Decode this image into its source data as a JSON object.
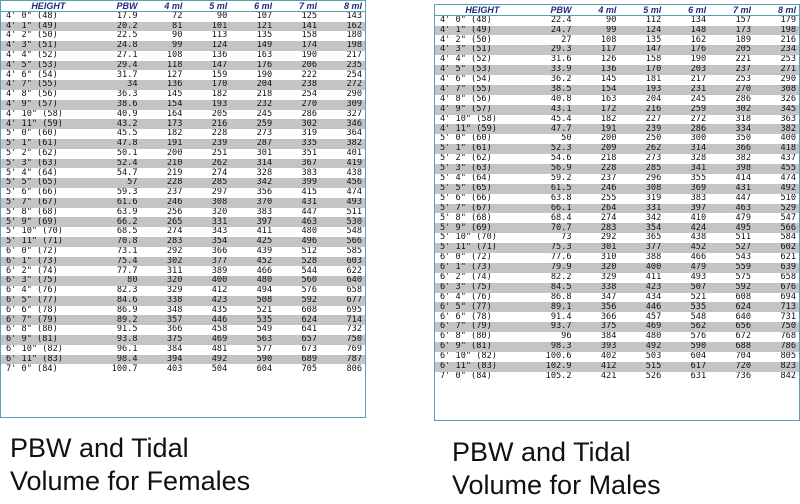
{
  "headers": [
    "HEIGHT",
    "PBW",
    "4 ml",
    "5 ml",
    "6 ml",
    "7 ml",
    "8 ml"
  ],
  "females": {
    "caption_line1": "PBW and  Tidal",
    "caption_line2": "Volume for Females",
    "rows": [
      [
        "4' 0\"  (48)",
        "17.9",
        "72",
        "90",
        "107",
        "125",
        "143"
      ],
      [
        "4' 1\"  (49)",
        "20.2",
        "81",
        "101",
        "121",
        "141",
        "162"
      ],
      [
        "4' 2\"  (50)",
        "22.5",
        "90",
        "113",
        "135",
        "158",
        "180"
      ],
      [
        "4' 3\"  (51)",
        "24.8",
        "99",
        "124",
        "149",
        "174",
        "198"
      ],
      [
        "4' 4\"  (52)",
        "27.1",
        "108",
        "136",
        "163",
        "190",
        "217"
      ],
      [
        "4' 5\"  (53)",
        "29.4",
        "118",
        "147",
        "176",
        "206",
        "235"
      ],
      [
        "4' 6\"  (54)",
        "31.7",
        "127",
        "159",
        "190",
        "222",
        "254"
      ],
      [
        "4' 7\"  (55)",
        "34",
        "136",
        "170",
        "204",
        "238",
        "272"
      ],
      [
        "4' 8\"  (56)",
        "36.3",
        "145",
        "182",
        "218",
        "254",
        "290"
      ],
      [
        "4' 9\"  (57)",
        "38.6",
        "154",
        "193",
        "232",
        "270",
        "309"
      ],
      [
        "4' 10\"  (58)",
        "40.9",
        "164",
        "205",
        "245",
        "286",
        "327"
      ],
      [
        "4' 11\"  (59)",
        "43.2",
        "173",
        "216",
        "259",
        "302",
        "346"
      ],
      [
        "5' 0\"  (60)",
        "45.5",
        "182",
        "228",
        "273",
        "319",
        "364"
      ],
      [
        "5' 1\"  (61)",
        "47.8",
        "191",
        "239",
        "287",
        "335",
        "382"
      ],
      [
        "5' 2\"  (62)",
        "50.1",
        "200",
        "251",
        "301",
        "351",
        "401"
      ],
      [
        "5' 3\"  (63)",
        "52.4",
        "210",
        "262",
        "314",
        "367",
        "419"
      ],
      [
        "5' 4\"  (64)",
        "54.7",
        "219",
        "274",
        "328",
        "383",
        "438"
      ],
      [
        "5' 5\"  (65)",
        "57",
        "228",
        "285",
        "342",
        "399",
        "456"
      ],
      [
        "5' 6\"  (66)",
        "59.3",
        "237",
        "297",
        "356",
        "415",
        "474"
      ],
      [
        "5' 7\"  (67)",
        "61.6",
        "246",
        "308",
        "370",
        "431",
        "493"
      ],
      [
        "5' 8\"  (68)",
        "63.9",
        "256",
        "320",
        "383",
        "447",
        "511"
      ],
      [
        "5' 9\"  (69)",
        "66.2",
        "265",
        "331",
        "397",
        "463",
        "530"
      ],
      [
        "5' 10\"  (70)",
        "68.5",
        "274",
        "343",
        "411",
        "480",
        "548"
      ],
      [
        "5' 11\"  (71)",
        "70.8",
        "283",
        "354",
        "425",
        "496",
        "566"
      ],
      [
        "6' 0\"  (72)",
        "73.1",
        "292",
        "366",
        "439",
        "512",
        "585"
      ],
      [
        "6' 1\"  (73)",
        "75.4",
        "302",
        "377",
        "452",
        "528",
        "603"
      ],
      [
        "6' 2\"  (74)",
        "77.7",
        "311",
        "389",
        "466",
        "544",
        "622"
      ],
      [
        "6' 3\"  (75)",
        "80",
        "320",
        "400",
        "480",
        "560",
        "640"
      ],
      [
        "6' 4\"  (76)",
        "82.3",
        "329",
        "412",
        "494",
        "576",
        "658"
      ],
      [
        "6' 5\"  (77)",
        "84.6",
        "338",
        "423",
        "508",
        "592",
        "677"
      ],
      [
        "6' 6\"  (78)",
        "86.9",
        "348",
        "435",
        "521",
        "608",
        "695"
      ],
      [
        "6' 7\"  (79)",
        "89.2",
        "357",
        "446",
        "535",
        "624",
        "714"
      ],
      [
        "6' 8\"  (80)",
        "91.5",
        "366",
        "458",
        "549",
        "641",
        "732"
      ],
      [
        "6' 9\"  (81)",
        "93.8",
        "375",
        "469",
        "563",
        "657",
        "750"
      ],
      [
        "6' 10\"  (82)",
        "96.1",
        "384",
        "481",
        "577",
        "673",
        "769"
      ],
      [
        "6' 11\"  (83)",
        "98.4",
        "394",
        "492",
        "590",
        "689",
        "787"
      ],
      [
        "7' 0\"  (84)",
        "100.7",
        "403",
        "504",
        "604",
        "705",
        "806"
      ]
    ]
  },
  "males": {
    "caption_line1": "PBW and Tidal",
    "caption_line2": "Volume for Males",
    "rows": [
      [
        "4' 0\"  (48)",
        "22.4",
        "90",
        "112",
        "134",
        "157",
        "179"
      ],
      [
        "4' 1\"  (49)",
        "24.7",
        "99",
        "124",
        "148",
        "173",
        "198"
      ],
      [
        "4' 2\"  (50)",
        "27",
        "108",
        "135",
        "162",
        "189",
        "216"
      ],
      [
        "4' 3\"  (51)",
        "29.3",
        "117",
        "147",
        "176",
        "205",
        "234"
      ],
      [
        "4' 4\"  (52)",
        "31.6",
        "126",
        "158",
        "190",
        "221",
        "253"
      ],
      [
        "4' 5\"  (53)",
        "33.9",
        "136",
        "170",
        "203",
        "237",
        "271"
      ],
      [
        "4' 6\"  (54)",
        "36.2",
        "145",
        "181",
        "217",
        "253",
        "290"
      ],
      [
        "4' 7\"  (55)",
        "38.5",
        "154",
        "193",
        "231",
        "270",
        "308"
      ],
      [
        "4' 8\"  (56)",
        "40.8",
        "163",
        "204",
        "245",
        "286",
        "326"
      ],
      [
        "4' 9\"  (57)",
        "43.1",
        "172",
        "216",
        "259",
        "302",
        "345"
      ],
      [
        "4' 10\"  (58)",
        "45.4",
        "182",
        "227",
        "272",
        "318",
        "363"
      ],
      [
        "4' 11\"  (59)",
        "47.7",
        "191",
        "239",
        "286",
        "334",
        "382"
      ],
      [
        "5' 0\"  (60)",
        "50",
        "200",
        "250",
        "300",
        "350",
        "400"
      ],
      [
        "5' 1\"  (61)",
        "52.3",
        "209",
        "262",
        "314",
        "366",
        "418"
      ],
      [
        "5' 2\"  (62)",
        "54.6",
        "218",
        "273",
        "328",
        "382",
        "437"
      ],
      [
        "5' 3\"  (63)",
        "56.9",
        "228",
        "285",
        "341",
        "398",
        "455"
      ],
      [
        "5' 4\"  (64)",
        "59.2",
        "237",
        "296",
        "355",
        "414",
        "474"
      ],
      [
        "5' 5\"  (65)",
        "61.5",
        "246",
        "308",
        "369",
        "431",
        "492"
      ],
      [
        "5' 6\"  (66)",
        "63.8",
        "255",
        "319",
        "383",
        "447",
        "510"
      ],
      [
        "5' 7\"  (67)",
        "66.1",
        "264",
        "331",
        "397",
        "463",
        "529"
      ],
      [
        "5' 8\"  (68)",
        "68.4",
        "274",
        "342",
        "410",
        "479",
        "547"
      ],
      [
        "5' 9\"  (69)",
        "70.7",
        "283",
        "354",
        "424",
        "495",
        "566"
      ],
      [
        "5' 10\"  (70)",
        "73",
        "292",
        "365",
        "438",
        "511",
        "584"
      ],
      [
        "5' 11\"  (71)",
        "75.3",
        "301",
        "377",
        "452",
        "527",
        "602"
      ],
      [
        "6' 0\"  (72)",
        "77.6",
        "310",
        "388",
        "466",
        "543",
        "621"
      ],
      [
        "6' 1\"  (73)",
        "79.9",
        "320",
        "400",
        "479",
        "559",
        "639"
      ],
      [
        "6' 2\"  (74)",
        "82.2",
        "329",
        "411",
        "493",
        "575",
        "658"
      ],
      [
        "6' 3\"  (75)",
        "84.5",
        "338",
        "423",
        "507",
        "592",
        "676"
      ],
      [
        "6' 4\"  (76)",
        "86.8",
        "347",
        "434",
        "521",
        "608",
        "694"
      ],
      [
        "6' 5\"  (77)",
        "89.1",
        "356",
        "446",
        "535",
        "624",
        "713"
      ],
      [
        "6' 6\"  (78)",
        "91.4",
        "366",
        "457",
        "548",
        "640",
        "731"
      ],
      [
        "6' 7\"  (79)",
        "93.7",
        "375",
        "469",
        "562",
        "656",
        "750"
      ],
      [
        "6' 8\"  (80)",
        "96",
        "384",
        "480",
        "576",
        "672",
        "768"
      ],
      [
        "6' 9\"  (81)",
        "98.3",
        "393",
        "492",
        "590",
        "688",
        "786"
      ],
      [
        "6' 10\"  (82)",
        "100.6",
        "402",
        "503",
        "604",
        "704",
        "805"
      ],
      [
        "6' 11\"  (83)",
        "102.9",
        "412",
        "515",
        "617",
        "720",
        "823"
      ],
      [
        "7' 0\"  (84)",
        "105.2",
        "421",
        "526",
        "631",
        "736",
        "842"
      ]
    ]
  }
}
